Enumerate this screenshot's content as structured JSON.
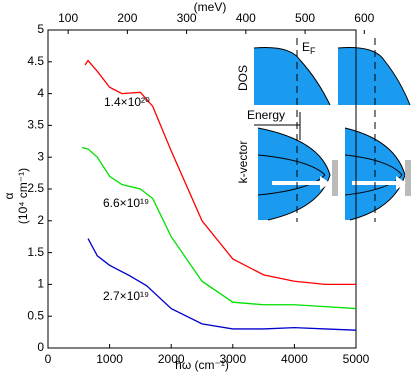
{
  "chart_data": {
    "type": "line",
    "xlabel": "ħω  (cm⁻¹)",
    "ylabel": "α",
    "ylabel_units": "(10⁴ cm⁻¹)",
    "x2label": "(meV)",
    "xlim": [
      0,
      5000
    ],
    "xticks": [
      0,
      1000,
      2000,
      3000,
      4000,
      5000
    ],
    "ylim": [
      0,
      5
    ],
    "yticks": [
      0,
      0.5,
      1,
      1.5,
      2,
      2.5,
      3,
      3.5,
      4,
      4.5,
      5
    ],
    "x2lim": [
      66,
      586
    ],
    "x2ticks": [
      100,
      200,
      300,
      400,
      500,
      600
    ],
    "series": [
      {
        "name": "1.4×10²⁰",
        "color": "#ff0000",
        "x": [
          600,
          650,
          800,
          1000,
          1200,
          1500,
          1700,
          2000,
          2500,
          3000,
          3500,
          4000,
          4500,
          5000
        ],
        "values": [
          4.45,
          4.52,
          4.35,
          4.1,
          4.0,
          4.02,
          3.8,
          3.1,
          2.0,
          1.4,
          1.15,
          1.05,
          1.0,
          1.0
        ]
      },
      {
        "name": "6.6×10¹⁹",
        "color": "#00e000",
        "x": [
          550,
          650,
          800,
          1000,
          1200,
          1500,
          1700,
          2000,
          2500,
          3000,
          3500,
          4000,
          4500,
          5000
        ],
        "values": [
          3.15,
          3.13,
          3.0,
          2.7,
          2.57,
          2.5,
          2.35,
          1.75,
          1.05,
          0.72,
          0.68,
          0.68,
          0.65,
          0.62
        ]
      },
      {
        "name": "2.7×10¹⁹",
        "color": "#0000cc",
        "x": [
          650,
          800,
          1000,
          1300,
          1600,
          2000,
          2500,
          3000,
          3500,
          4000,
          4500,
          5000
        ],
        "values": [
          1.72,
          1.45,
          1.3,
          1.15,
          0.98,
          0.62,
          0.38,
          0.3,
          0.3,
          0.32,
          0.3,
          0.28
        ]
      }
    ],
    "inset": {
      "dos": "DOS",
      "fermi": "E",
      "fermi_sub": "F",
      "energy": "Energy",
      "kvector": "k-vector"
    }
  }
}
